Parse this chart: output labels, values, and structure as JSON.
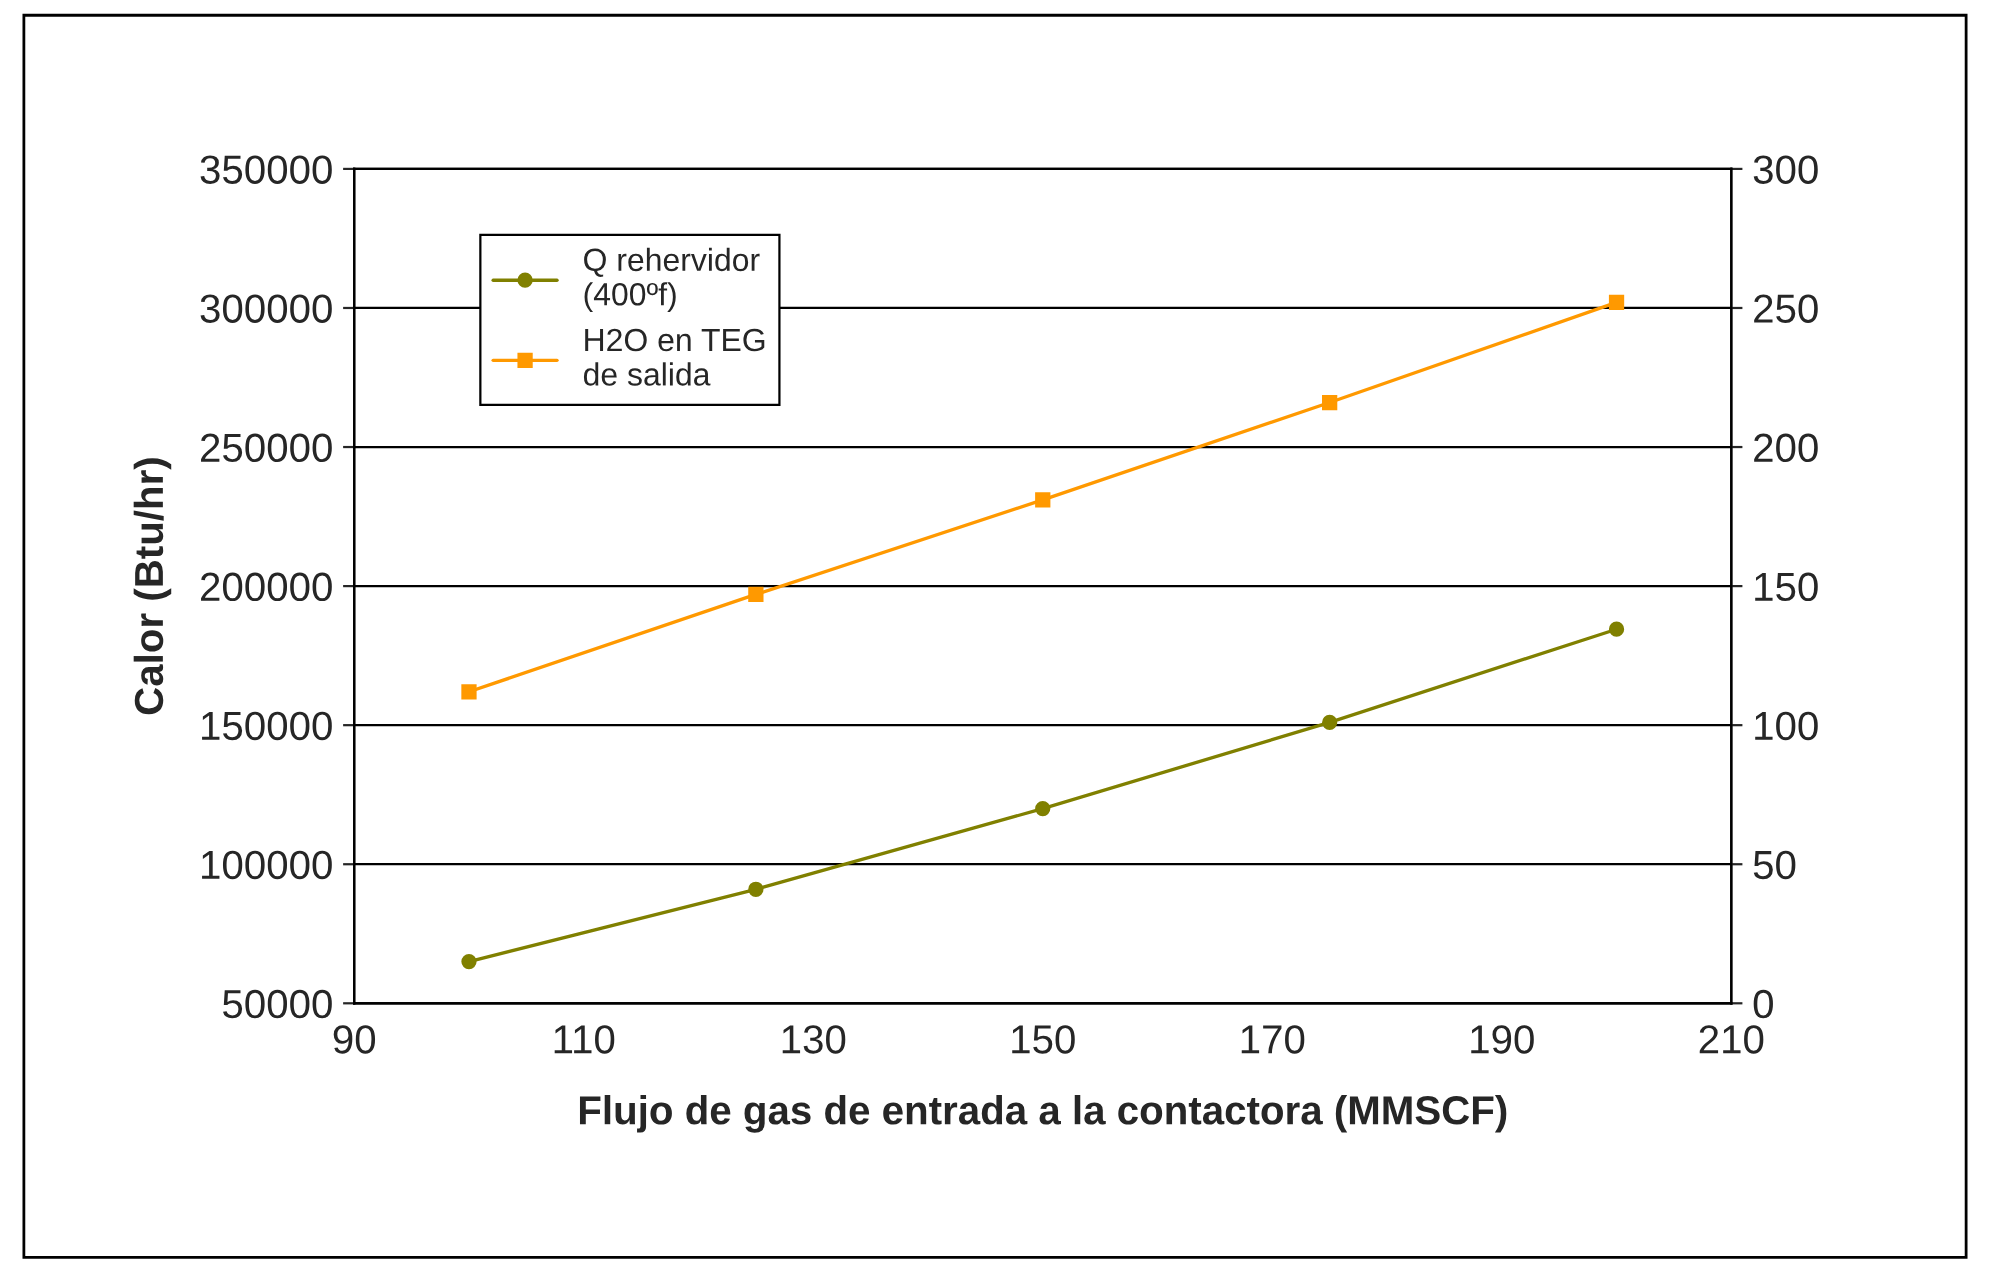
{
  "chart_data": {
    "type": "line",
    "xlabel": "Flujo de gas de entrada a la contactora (MMSCF)",
    "ylabel": "Calor (Btu/hr)",
    "x": [
      100,
      125,
      150,
      175,
      200
    ],
    "series": [
      {
        "name": "Q rehervidor\n(400ºf)",
        "color": "#808000",
        "marker": "circle",
        "values": [
          65000,
          91000,
          120000,
          151000,
          184500
        ]
      },
      {
        "name": "H2O en TEG\nde salida",
        "color": "#ff9900",
        "marker": "square",
        "axis": "y2",
        "values": [
          112,
          147,
          181,
          216,
          252
        ]
      }
    ],
    "xlim": [
      90,
      210
    ],
    "xticks": [
      90,
      110,
      130,
      150,
      170,
      190,
      210
    ],
    "ylim": [
      50000,
      350000
    ],
    "yticks": [
      50000,
      100000,
      150000,
      200000,
      250000,
      300000,
      350000
    ],
    "y2lim": [
      0,
      300
    ],
    "y2ticks": [
      0,
      50,
      100,
      150,
      200,
      250,
      300
    ],
    "grid": "y",
    "legend": "top left",
    "line_style": "solid"
  }
}
